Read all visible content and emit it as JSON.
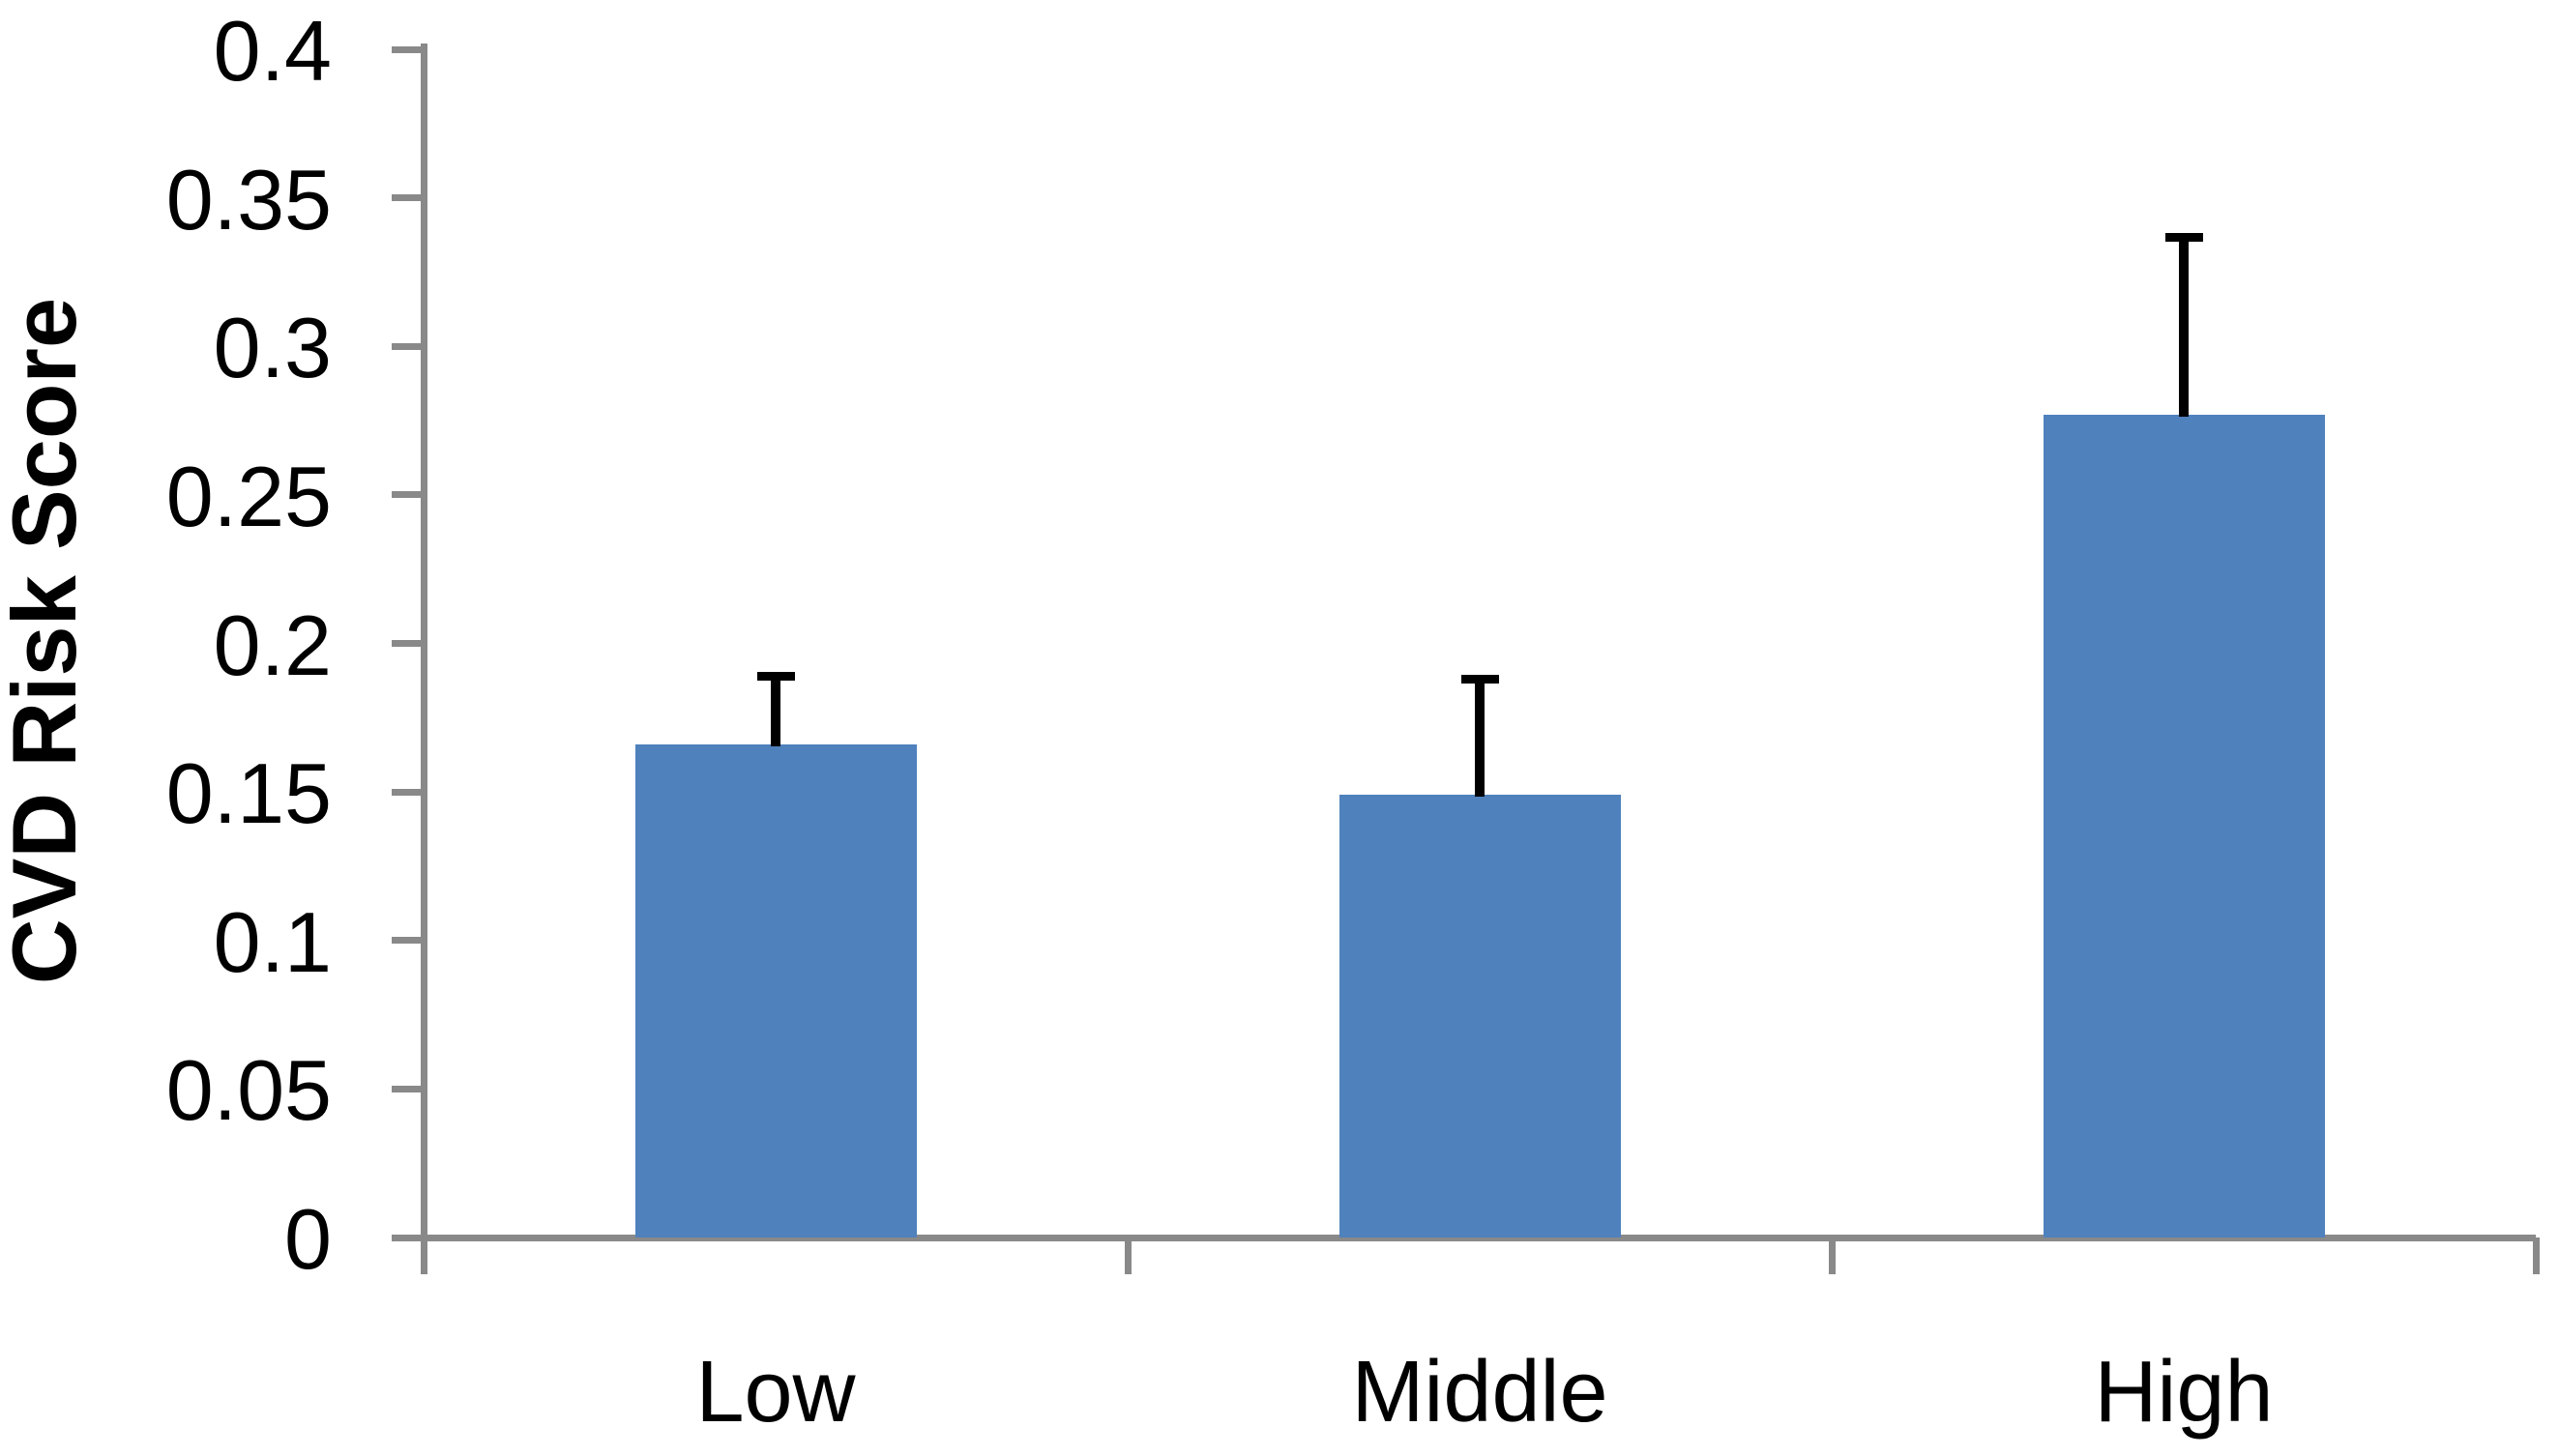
{
  "chart_data": {
    "type": "bar",
    "title": "",
    "categories": [
      "Low",
      "Middle",
      "High"
    ],
    "values": [
      0.166,
      0.149,
      0.277
    ],
    "error_plus": [
      0.023,
      0.039,
      0.06
    ],
    "series": [
      {
        "name": "CVD Risk Score",
        "values": [
          0.166,
          0.149,
          0.277
        ],
        "error_plus": [
          0.023,
          0.039,
          0.06
        ]
      }
    ],
    "xlabel": "",
    "ylabel": "CVD Risk Score",
    "ylim": [
      0,
      0.4
    ],
    "y_tick_values": [
      0,
      0.05,
      0.1,
      0.15,
      0.2,
      0.25,
      0.3,
      0.35,
      0.4
    ],
    "y_tick_labels": [
      "0",
      "0.05",
      "0.1",
      "0.15",
      "0.2",
      "0.25",
      "0.3",
      "0.35",
      "0.4"
    ],
    "grid": false,
    "legend": false,
    "error_bars": "upper-only",
    "bar_color": "#4F81BD",
    "axis_color": "#898989",
    "error_bar_color": "#000000",
    "text_color": "#000000",
    "background_color": "#FFFFFF"
  }
}
